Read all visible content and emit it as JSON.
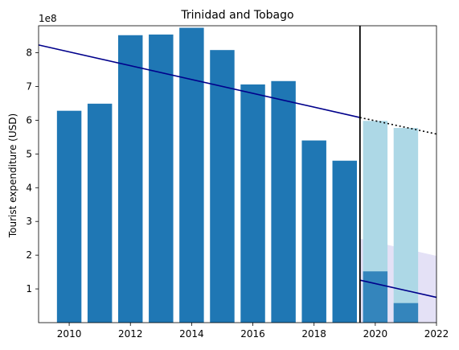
{
  "chart_data": {
    "type": "bar",
    "title": "Trinidad and Tobago",
    "ylabel": "Tourist expenditure (USD)",
    "xlabel": "",
    "y_scale_label": "1e8",
    "xlim": [
      2009,
      2022
    ],
    "ylim": [
      0,
      8.8
    ],
    "x_ticks": [
      "2010",
      "2012",
      "2014",
      "2016",
      "2018",
      "2020",
      "2022"
    ],
    "y_ticks": [
      "1",
      "2",
      "3",
      "4",
      "5",
      "6",
      "7",
      "8"
    ],
    "grid": false,
    "cutoff_x": 2019.5,
    "series": [
      {
        "years": [
          2010,
          2011,
          2012,
          2013,
          2014,
          2015,
          2016,
          2017,
          2018,
          2019
        ],
        "values": [
          6.28,
          6.49,
          8.52,
          8.54,
          8.74,
          8.08,
          7.06,
          7.16,
          5.4,
          4.8
        ],
        "color": "#1f77b4"
      },
      {
        "years": [
          2020,
          2021
        ],
        "values": [
          5.98,
          5.77
        ],
        "color": "#add8e6"
      },
      {
        "years": [
          2020,
          2021
        ],
        "values": [
          1.52,
          0.58
        ],
        "color": "#1f77b4"
      }
    ],
    "trend_lines": [
      {
        "x": [
          2009,
          2019.5
        ],
        "y": [
          8.23,
          6.08
        ],
        "style": "solid",
        "color": "#00008b"
      },
      {
        "x": [
          2019.5,
          2022
        ],
        "y": [
          6.08,
          5.59
        ],
        "style": "dotted",
        "color": "#000000"
      },
      {
        "x": [
          2019.5,
          2022
        ],
        "y": [
          1.26,
          0.75
        ],
        "style": "solid",
        "color": "#00008b"
      }
    ],
    "band": {
      "x": [
        2019.5,
        2022
      ],
      "upper": [
        2.49,
        1.98
      ],
      "lower": [
        0,
        0
      ],
      "color": "#6a5acd"
    }
  }
}
